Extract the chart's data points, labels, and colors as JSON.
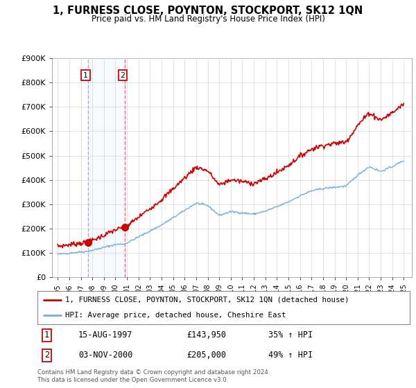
{
  "title": "1, FURNESS CLOSE, POYNTON, STOCKPORT, SK12 1QN",
  "subtitle": "Price paid vs. HM Land Registry's House Price Index (HPI)",
  "legend_line1": "1, FURNESS CLOSE, POYNTON, STOCKPORT, SK12 1QN (detached house)",
  "legend_line2": "HPI: Average price, detached house, Cheshire East",
  "transaction1_date": "15-AUG-1997",
  "transaction1_price": "£143,950",
  "transaction1_hpi": "35% ↑ HPI",
  "transaction2_date": "03-NOV-2000",
  "transaction2_price": "£205,000",
  "transaction2_hpi": "49% ↑ HPI",
  "footer": "Contains HM Land Registry data © Crown copyright and database right 2024.\nThis data is licensed under the Open Government Licence v3.0.",
  "hpi_color": "#7aadda",
  "price_color": "#cc0000",
  "marker_color": "#cc0000",
  "dashed1_color": "#aaaacc",
  "dashed2_color": "#ff6666",
  "shade_color": "#ddeeff",
  "transaction_box_color": "#cc0000",
  "ylim": [
    0,
    900000
  ],
  "yticks": [
    0,
    100000,
    200000,
    300000,
    400000,
    500000,
    600000,
    700000,
    800000,
    900000
  ],
  "ytick_labels": [
    "£0",
    "£100K",
    "£200K",
    "£300K",
    "£400K",
    "£500K",
    "£600K",
    "£700K",
    "£800K",
    "£900K"
  ],
  "transaction1_year": 1997.62,
  "transaction1_value": 143950,
  "transaction2_year": 2000.84,
  "transaction2_value": 205000,
  "xlim_left": 1994.5,
  "xlim_right": 2025.7
}
